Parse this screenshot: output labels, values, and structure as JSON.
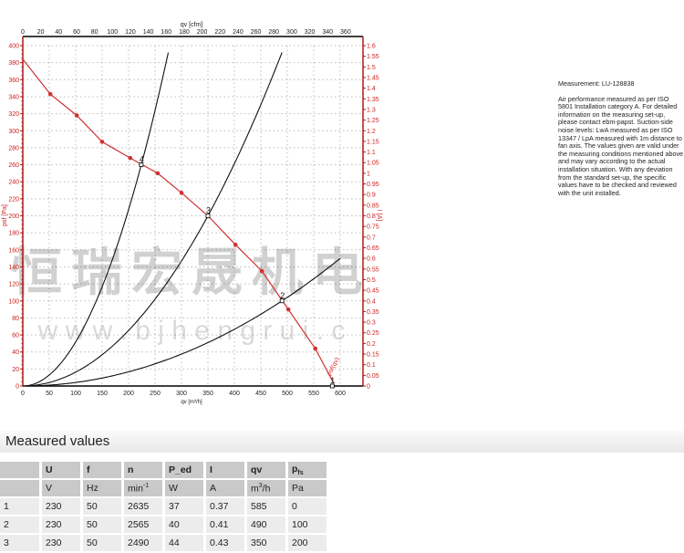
{
  "chart_data": {
    "type": "line",
    "title": "",
    "x_axis_bottom": {
      "label": "qv [m³/h]",
      "range": [
        0,
        640
      ],
      "ticks": [
        0,
        50,
        100,
        150,
        200,
        250,
        300,
        350,
        400,
        450,
        500,
        550,
        600
      ]
    },
    "x_axis_top": {
      "label": "qv [cfm]",
      "ticks": [
        0,
        20,
        40,
        60,
        80,
        100,
        120,
        140,
        160,
        180,
        200,
        220,
        240,
        260,
        280,
        300,
        320,
        340,
        360
      ]
    },
    "y_axis_left": {
      "label": "psf [Pa]",
      "range": [
        0,
        400
      ],
      "ticks": [
        0,
        20,
        40,
        60,
        80,
        100,
        120,
        140,
        160,
        180,
        200,
        220,
        240,
        260,
        280,
        300,
        320,
        340,
        360,
        380,
        400
      ],
      "color": "#cc2222"
    },
    "y_axis_right": {
      "label": "I [A]",
      "range": [
        0,
        1.6
      ],
      "ticks": [
        0,
        0.05,
        0.1,
        0.15,
        0.2,
        0.25,
        0.3,
        0.35,
        0.4,
        0.45,
        0.5,
        0.55,
        0.6,
        0.65,
        0.7,
        0.75,
        0.8,
        0.85,
        0.9,
        0.95,
        1,
        1.05,
        1.1,
        1.15,
        1.2,
        1.25,
        1.3,
        1.35,
        1.4,
        1.45,
        1.5,
        1.55,
        1.6
      ],
      "color": "#cc2222"
    },
    "grid": true,
    "series": [
      {
        "name": "psf(qv)",
        "color": "#d03030",
        "points": [
          [
            0,
            384
          ],
          [
            52,
            343
          ],
          [
            102,
            318
          ],
          [
            150,
            287
          ],
          [
            203,
            268
          ],
          [
            255,
            250
          ],
          [
            300,
            227
          ],
          [
            350,
            200
          ],
          [
            402,
            166
          ],
          [
            452,
            135
          ],
          [
            502,
            90
          ],
          [
            553,
            44
          ],
          [
            588,
            3
          ]
        ]
      }
    ],
    "system_curves": [
      {
        "label": "4",
        "through": [
          224,
          260
        ],
        "color": "#111111"
      },
      {
        "label": "3",
        "through": [
          350,
          200
        ],
        "color": "#111111"
      },
      {
        "label": "2",
        "through": [
          490,
          100
        ],
        "color": "#111111"
      }
    ],
    "operating_points": [
      {
        "label": "1",
        "qv": 585,
        "psf": 0
      },
      {
        "label": "2",
        "qv": 490,
        "psf": 100
      },
      {
        "label": "3",
        "qv": 350,
        "psf": 200
      },
      {
        "label": "4",
        "qv": 224,
        "psf": 260
      }
    ]
  },
  "watermark": {
    "text": "恒瑞宏晟机电",
    "url": "w w w . b j h e n g r u i . c"
  },
  "note": {
    "measurement": "Measurement: LU-128838",
    "text": "Air performance measured as per ISO 5801 Installation category A. For detailed information on the measuring set-up, please contact ebm-papst. Suction-side noise levels: LwA measured as per ISO 13347 / LpA measured with 1m distance to fan axis. The values given are valid under the measuring conditions mentioned above and may vary according to the actual installation situation. With any deviation from the standard set-up, the specific values have to be checked and reviewed with the unit installed."
  },
  "measured": {
    "title": "Measured values",
    "headers": [
      "",
      "U",
      "f",
      "n",
      "P_ed",
      "I",
      "qv",
      "psf"
    ],
    "units": [
      "",
      "V",
      "Hz",
      "min-1",
      "W",
      "A",
      "m3/h",
      "Pa"
    ],
    "rows": [
      [
        "1",
        "230",
        "50",
        "2635",
        "37",
        "0.37",
        "585",
        "0"
      ],
      [
        "2",
        "230",
        "50",
        "2565",
        "40",
        "0.41",
        "490",
        "100"
      ],
      [
        "3",
        "230",
        "50",
        "2490",
        "44",
        "0.43",
        "350",
        "200"
      ]
    ]
  }
}
